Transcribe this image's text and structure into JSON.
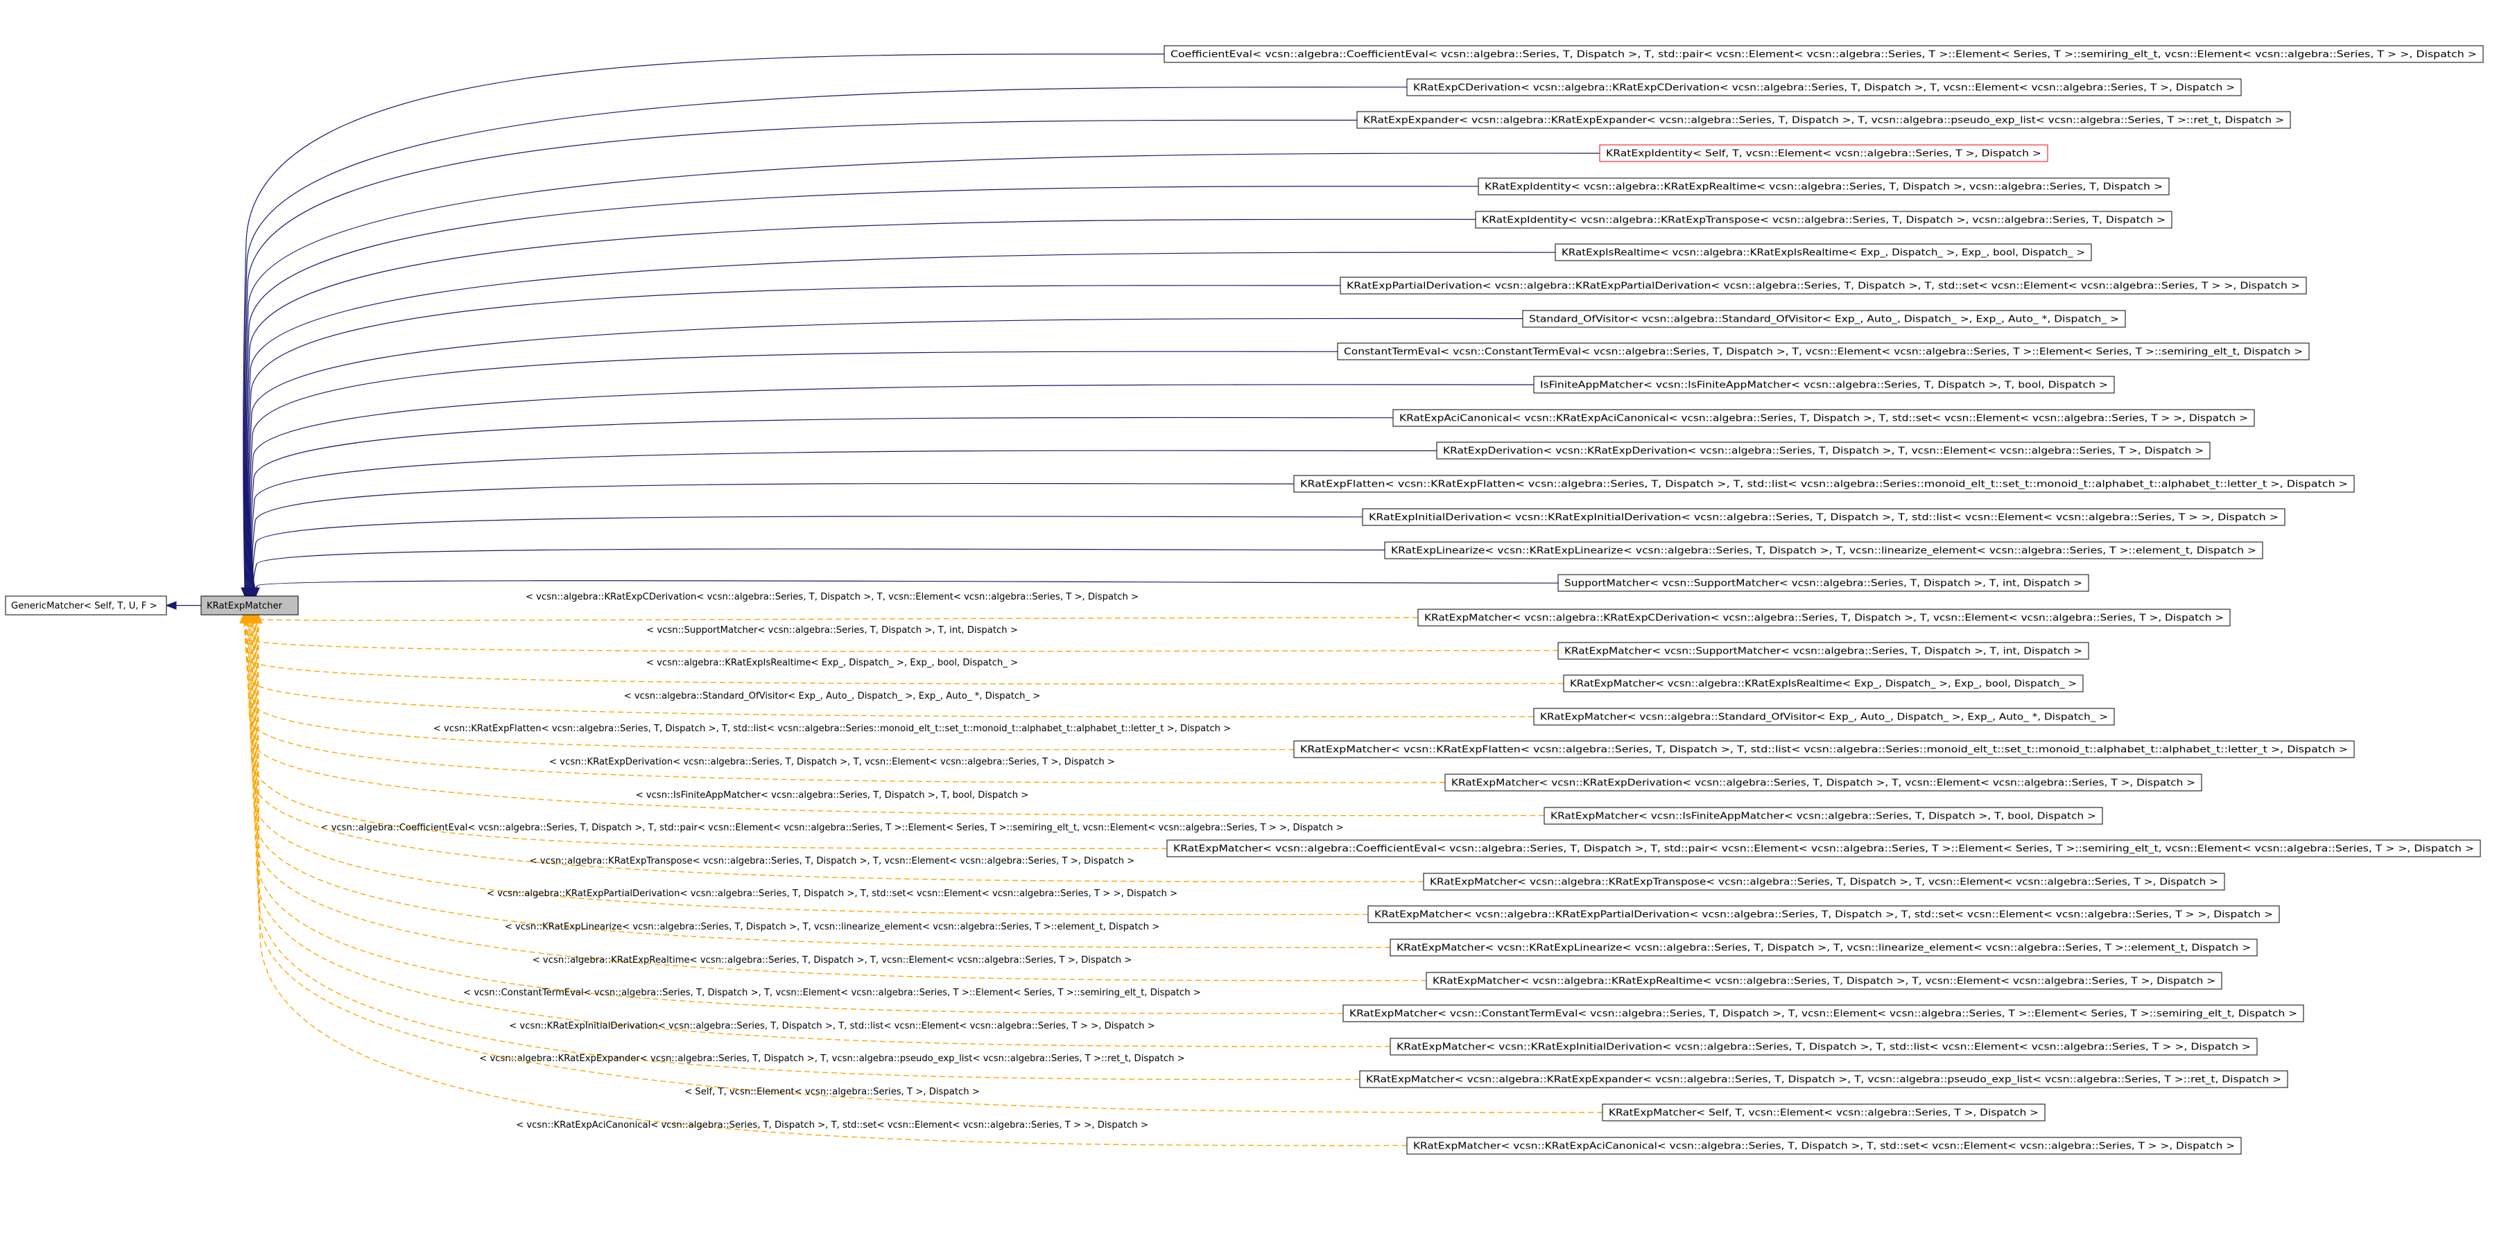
{
  "nodes": {
    "base": "GenericMatcher< Self, T, U, F >",
    "center": "KRatExpMatcher"
  },
  "solid_children": [
    {
      "text": "CoefficientEval< vcsn::algebra::CoefficientEval< vcsn::algebra::Series, T, Dispatch >, T, std::pair< vcsn::Element< vcsn::algebra::Series, T >::Element< Series, T >::semiring_elt_t, vcsn::Element< vcsn::algebra::Series, T > >, Dispatch >",
      "red": false
    },
    {
      "text": "KRatExpCDerivation< vcsn::algebra::KRatExpCDerivation< vcsn::algebra::Series, T, Dispatch >, T, vcsn::Element< vcsn::algebra::Series, T >, Dispatch >",
      "red": false
    },
    {
      "text": "KRatExpExpander< vcsn::algebra::KRatExpExpander< vcsn::algebra::Series, T, Dispatch >, T, vcsn::algebra::pseudo_exp_list< vcsn::algebra::Series, T >::ret_t, Dispatch >",
      "red": false
    },
    {
      "text": "KRatExpIdentity< Self, T, vcsn::Element< vcsn::algebra::Series, T >, Dispatch >",
      "red": true
    },
    {
      "text": "KRatExpIdentity< vcsn::algebra::KRatExpRealtime< vcsn::algebra::Series, T, Dispatch >, vcsn::algebra::Series, T, Dispatch >",
      "red": false
    },
    {
      "text": "KRatExpIdentity< vcsn::algebra::KRatExpTranspose< vcsn::algebra::Series, T, Dispatch >, vcsn::algebra::Series, T, Dispatch >",
      "red": false
    },
    {
      "text": "KRatExpIsRealtime< vcsn::algebra::KRatExpIsRealtime< Exp_, Dispatch_ >, Exp_, bool, Dispatch_ >",
      "red": false
    },
    {
      "text": "KRatExpPartialDerivation< vcsn::algebra::KRatExpPartialDerivation< vcsn::algebra::Series, T, Dispatch >, T, std::set< vcsn::Element< vcsn::algebra::Series, T > >, Dispatch >",
      "red": false
    },
    {
      "text": "Standard_OfVisitor< vcsn::algebra::Standard_OfVisitor< Exp_, Auto_, Dispatch_ >, Exp_, Auto_ *, Dispatch_ >",
      "red": false
    },
    {
      "text": "ConstantTermEval< vcsn::ConstantTermEval< vcsn::algebra::Series, T, Dispatch >, T, vcsn::Element< vcsn::algebra::Series, T >::Element< Series, T >::semiring_elt_t, Dispatch >",
      "red": false
    },
    {
      "text": "IsFiniteAppMatcher< vcsn::IsFiniteAppMatcher< vcsn::algebra::Series, T, Dispatch >, T, bool, Dispatch >",
      "red": false
    },
    {
      "text": "KRatExpAciCanonical< vcsn::KRatExpAciCanonical< vcsn::algebra::Series, T, Dispatch >, T, std::set< vcsn::Element< vcsn::algebra::Series, T > >, Dispatch >",
      "red": false
    },
    {
      "text": "KRatExpDerivation< vcsn::KRatExpDerivation< vcsn::algebra::Series, T, Dispatch >, T, vcsn::Element< vcsn::algebra::Series, T >, Dispatch >",
      "red": false
    },
    {
      "text": "KRatExpFlatten< vcsn::KRatExpFlatten< vcsn::algebra::Series, T, Dispatch >, T, std::list< vcsn::algebra::Series::monoid_elt_t::set_t::monoid_t::alphabet_t::alphabet_t::letter_t >, Dispatch >",
      "red": false
    },
    {
      "text": "KRatExpInitialDerivation< vcsn::KRatExpInitialDerivation< vcsn::algebra::Series, T, Dispatch >, T, std::list< vcsn::Element< vcsn::algebra::Series, T > >, Dispatch >",
      "red": false
    },
    {
      "text": "KRatExpLinearize< vcsn::KRatExpLinearize< vcsn::algebra::Series, T, Dispatch >, T, vcsn::linearize_element< vcsn::algebra::Series, T >::element_t, Dispatch >",
      "red": false
    },
    {
      "text": "SupportMatcher< vcsn::SupportMatcher< vcsn::algebra::Series, T, Dispatch >, T, int, Dispatch >",
      "red": false
    }
  ],
  "dashed_children": [
    {
      "text": "KRatExpMatcher< vcsn::algebra::KRatExpCDerivation< vcsn::algebra::Series, T, Dispatch >, T, vcsn::Element< vcsn::algebra::Series, T >, Dispatch >",
      "label": "< vcsn::algebra::KRatExpCDerivation< vcsn::algebra::Series, T, Dispatch >, T, vcsn::Element< vcsn::algebra::Series, T >, Dispatch >"
    },
    {
      "text": "KRatExpMatcher< vcsn::SupportMatcher< vcsn::algebra::Series, T, Dispatch >, T, int, Dispatch >",
      "label": "< vcsn::SupportMatcher< vcsn::algebra::Series, T, Dispatch >, T, int, Dispatch >"
    },
    {
      "text": "KRatExpMatcher< vcsn::algebra::KRatExpIsRealtime< Exp_, Dispatch_ >, Exp_, bool, Dispatch_ >",
      "label": "< vcsn::algebra::KRatExpIsRealtime< Exp_, Dispatch_ >, Exp_, bool, Dispatch_ >"
    },
    {
      "text": "KRatExpMatcher< vcsn::algebra::Standard_OfVisitor< Exp_, Auto_, Dispatch_ >, Exp_, Auto_ *, Dispatch_ >",
      "label": "< vcsn::algebra::Standard_OfVisitor< Exp_, Auto_, Dispatch_ >, Exp_, Auto_ *, Dispatch_ >"
    },
    {
      "text": "KRatExpMatcher< vcsn::KRatExpFlatten< vcsn::algebra::Series, T, Dispatch >, T, std::list< vcsn::algebra::Series::monoid_elt_t::set_t::monoid_t::alphabet_t::alphabet_t::letter_t >, Dispatch >",
      "label": "< vcsn::KRatExpFlatten< vcsn::algebra::Series, T, Dispatch >, T, std::list< vcsn::algebra::Series::monoid_elt_t::set_t::monoid_t::alphabet_t::alphabet_t::letter_t >, Dispatch >"
    },
    {
      "text": "KRatExpMatcher< vcsn::KRatExpDerivation< vcsn::algebra::Series, T, Dispatch >, T, vcsn::Element< vcsn::algebra::Series, T >, Dispatch >",
      "label": "< vcsn::KRatExpDerivation< vcsn::algebra::Series, T, Dispatch >, T, vcsn::Element< vcsn::algebra::Series, T >, Dispatch >"
    },
    {
      "text": "KRatExpMatcher< vcsn::IsFiniteAppMatcher< vcsn::algebra::Series, T, Dispatch >, T, bool, Dispatch >",
      "label": "< vcsn::IsFiniteAppMatcher< vcsn::algebra::Series, T, Dispatch >, T, bool, Dispatch >"
    },
    {
      "text": "KRatExpMatcher< vcsn::algebra::CoefficientEval< vcsn::algebra::Series, T, Dispatch >, T, std::pair< vcsn::Element< vcsn::algebra::Series, T >::Element< Series, T >::semiring_elt_t, vcsn::Element< vcsn::algebra::Series, T > >, Dispatch >",
      "label": "< vcsn::algebra::CoefficientEval< vcsn::algebra::Series, T, Dispatch >, T, std::pair< vcsn::Element< vcsn::algebra::Series, T >::Element< Series, T >::semiring_elt_t, vcsn::Element< vcsn::algebra::Series, T > >, Dispatch >"
    },
    {
      "text": "KRatExpMatcher< vcsn::algebra::KRatExpTranspose< vcsn::algebra::Series, T, Dispatch >, T, vcsn::Element< vcsn::algebra::Series, T >, Dispatch >",
      "label": "< vcsn::algebra::KRatExpTranspose< vcsn::algebra::Series, T, Dispatch >, T, vcsn::Element< vcsn::algebra::Series, T >, Dispatch >"
    },
    {
      "text": "KRatExpMatcher< vcsn::algebra::KRatExpPartialDerivation< vcsn::algebra::Series, T, Dispatch >, T, std::set< vcsn::Element< vcsn::algebra::Series, T > >, Dispatch >",
      "label": "< vcsn::algebra::KRatExpPartialDerivation< vcsn::algebra::Series, T, Dispatch >, T, std::set< vcsn::Element< vcsn::algebra::Series, T > >, Dispatch >"
    },
    {
      "text": "KRatExpMatcher< vcsn::KRatExpLinearize< vcsn::algebra::Series, T, Dispatch >, T, vcsn::linearize_element< vcsn::algebra::Series, T >::element_t, Dispatch >",
      "label": "< vcsn::KRatExpLinearize< vcsn::algebra::Series, T, Dispatch >, T, vcsn::linearize_element< vcsn::algebra::Series, T >::element_t, Dispatch >"
    },
    {
      "text": "KRatExpMatcher< vcsn::algebra::KRatExpRealtime< vcsn::algebra::Series, T, Dispatch >, T, vcsn::Element< vcsn::algebra::Series, T >, Dispatch >",
      "label": "< vcsn::algebra::KRatExpRealtime< vcsn::algebra::Series, T, Dispatch >, T, vcsn::Element< vcsn::algebra::Series, T >, Dispatch >"
    },
    {
      "text": "KRatExpMatcher< vcsn::ConstantTermEval< vcsn::algebra::Series, T, Dispatch >, T, vcsn::Element< vcsn::algebra::Series, T >::Element< Series, T >::semiring_elt_t, Dispatch >",
      "label": "< vcsn::ConstantTermEval< vcsn::algebra::Series, T, Dispatch >, T, vcsn::Element< vcsn::algebra::Series, T >::Element< Series, T >::semiring_elt_t, Dispatch >"
    },
    {
      "text": "KRatExpMatcher< vcsn::KRatExpInitialDerivation< vcsn::algebra::Series, T, Dispatch >, T, std::list< vcsn::Element< vcsn::algebra::Series, T > >, Dispatch >",
      "label": "< vcsn::KRatExpInitialDerivation< vcsn::algebra::Series, T, Dispatch >, T, std::list< vcsn::Element< vcsn::algebra::Series, T > >, Dispatch >"
    },
    {
      "text": "KRatExpMatcher< vcsn::algebra::KRatExpExpander< vcsn::algebra::Series, T, Dispatch >, T, vcsn::algebra::pseudo_exp_list< vcsn::algebra::Series, T >::ret_t, Dispatch >",
      "label": "< vcsn::algebra::KRatExpExpander< vcsn::algebra::Series, T, Dispatch >, T, vcsn::algebra::pseudo_exp_list< vcsn::algebra::Series, T >::ret_t, Dispatch >"
    },
    {
      "text": "KRatExpMatcher< Self, T, vcsn::Element< vcsn::algebra::Series, T >, Dispatch >",
      "label": "< Self, T, vcsn::Element< vcsn::algebra::Series, T >, Dispatch >"
    },
    {
      "text": "KRatExpMatcher< vcsn::KRatExpAciCanonical< vcsn::algebra::Series, T, Dispatch >, T, std::set< vcsn::Element< vcsn::algebra::Series, T > >, Dispatch >",
      "label": "< vcsn::KRatExpAciCanonical< vcsn::algebra::Series, T, Dispatch >, T, std::set< vcsn::Element< vcsn::algebra::Series, T > >, Dispatch >"
    }
  ]
}
